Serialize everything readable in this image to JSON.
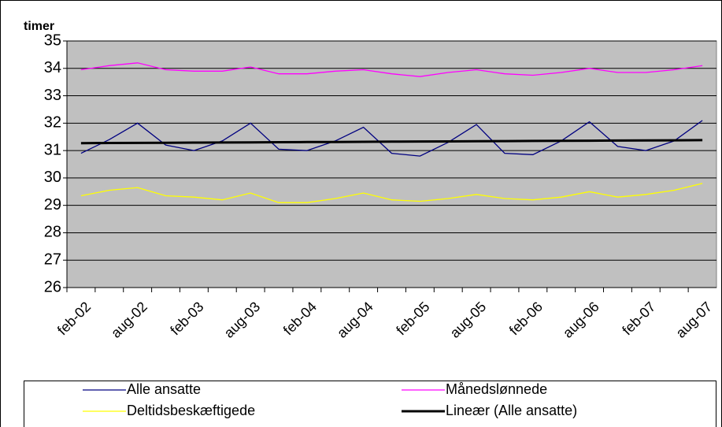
{
  "chart_data": {
    "type": "line",
    "y_label": "timer",
    "categories": [
      "feb-02",
      null,
      "aug-02",
      null,
      "feb-03",
      null,
      "aug-03",
      null,
      "feb-04",
      null,
      "aug-04",
      null,
      "feb-05",
      null,
      "aug-05",
      null,
      "feb-06",
      null,
      "aug-06",
      null,
      "feb-07",
      null,
      "aug-07"
    ],
    "series": [
      {
        "name": "Alle ansatte",
        "color": "#000080",
        "width": 1.3,
        "values": [
          30.9,
          31.4,
          32.0,
          31.2,
          31.0,
          31.35,
          32.0,
          31.05,
          31.0,
          31.35,
          31.85,
          30.9,
          30.8,
          31.3,
          31.95,
          30.9,
          30.85,
          31.35,
          32.05,
          31.15,
          31.0,
          31.35,
          32.1
        ]
      },
      {
        "name": "Månedslønnede",
        "color": "#ff00ff",
        "width": 1.3,
        "values": [
          33.95,
          34.1,
          34.2,
          33.95,
          33.9,
          33.9,
          34.05,
          33.8,
          33.8,
          33.9,
          33.95,
          33.8,
          33.7,
          33.85,
          33.95,
          33.8,
          33.75,
          33.85,
          34.0,
          33.85,
          33.85,
          33.95,
          34.1
        ]
      },
      {
        "name": "Deltidsbeskæftigede",
        "color": "#ffff00",
        "width": 1.3,
        "values": [
          29.35,
          29.55,
          29.65,
          29.35,
          29.3,
          29.2,
          29.45,
          29.1,
          29.1,
          29.25,
          29.45,
          29.2,
          29.15,
          29.25,
          29.4,
          29.25,
          29.2,
          29.3,
          29.5,
          29.3,
          29.4,
          29.55,
          29.8
        ]
      },
      {
        "name": "Lineær (Alle ansatte)",
        "color": "#000000",
        "width": 3,
        "values": [
          31.27,
          31.275,
          31.28,
          31.285,
          31.29,
          31.295,
          31.3,
          31.305,
          31.31,
          31.315,
          31.32,
          31.325,
          31.33,
          31.335,
          31.34,
          31.345,
          31.35,
          31.355,
          31.36,
          31.365,
          31.37,
          31.375,
          31.38
        ]
      }
    ],
    "ylim": [
      26,
      35
    ],
    "yticks": [
      26,
      27,
      28,
      29,
      30,
      31,
      32,
      33,
      34,
      35
    ],
    "grid": true,
    "plot_background": "#c0c0c0",
    "legend": "bottom"
  }
}
